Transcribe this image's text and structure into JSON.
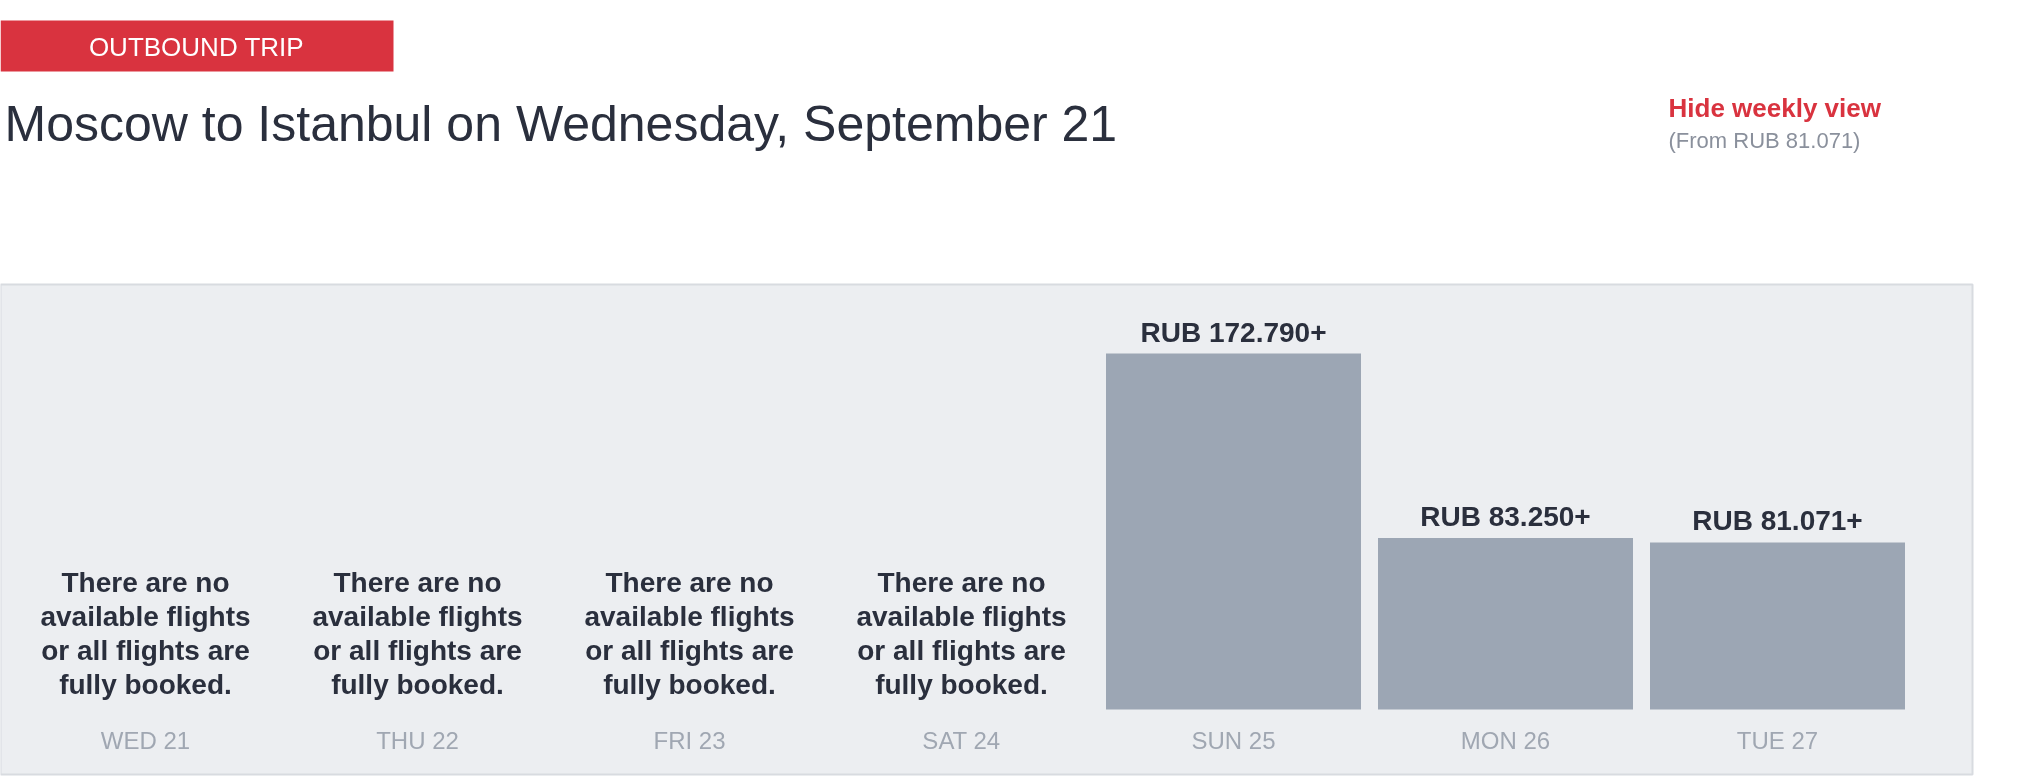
{
  "chart_data": {
    "type": "bar",
    "title": "Moscow to Istanbul on Wednesday, September 21",
    "subtitle": "OUTBOUND TRIP",
    "categories": [
      "WED 21",
      "THU 22",
      "FRI 23",
      "SAT 24",
      "SUN 25",
      "MON 26",
      "TUE 27"
    ],
    "values": [
      null,
      null,
      null,
      null,
      172790,
      83250,
      81071
    ],
    "value_labels": [
      null,
      null,
      null,
      null,
      "RUB 172.790+",
      "RUB 83.250+",
      "RUB 81.071+"
    ],
    "color": "#9ca6b4",
    "grid": false,
    "annotations": [
      "Hide weekly view",
      "(From RUB 81.071)",
      "There are no\navailable flights\nor all flights are\nfully booked.",
      "There are no\navailable flights\nor all flights are\nfully booked.",
      "There are no\navailable flights\nor all flights are\nfully booked.",
      "There are no\navailable flights\nor all flights are\nfully booked."
    ]
  }
}
